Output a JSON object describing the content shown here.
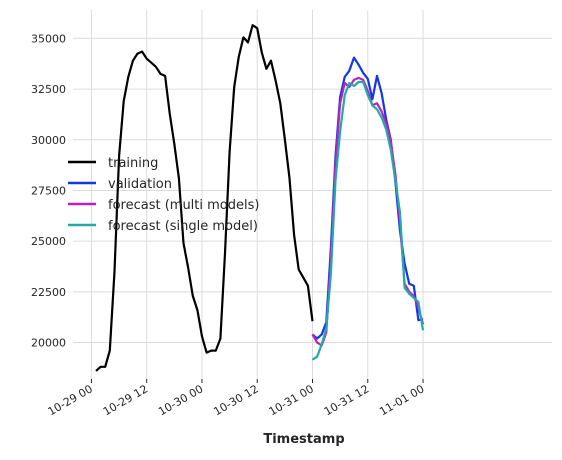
{
  "chart_data": {
    "type": "line",
    "title": "",
    "xlabel": "Timestamp",
    "ylabel": "",
    "grid": true,
    "legend_position": "center-left",
    "xlim": [
      -4,
      100
    ],
    "ylim": [
      18200,
      36400
    ],
    "x_ticks": [
      {
        "label": "10-29 00",
        "value": 0
      },
      {
        "label": "10-29 12",
        "value": 12
      },
      {
        "label": "10-30 00",
        "value": 24
      },
      {
        "label": "10-30 12",
        "value": 36
      },
      {
        "label": "10-31 00",
        "value": 48
      },
      {
        "label": "10-31 12",
        "value": 60
      },
      {
        "label": "11-01 00",
        "value": 72
      }
    ],
    "y_ticks": [
      {
        "label": "20000",
        "value": 20000
      },
      {
        "label": "22500",
        "value": 22500
      },
      {
        "label": "25000",
        "value": 25000
      },
      {
        "label": "27500",
        "value": 27500
      },
      {
        "label": "30000",
        "value": 30000
      },
      {
        "label": "32500",
        "value": 32500
      },
      {
        "label": "35000",
        "value": 35000
      }
    ],
    "series": [
      {
        "name": "training",
        "color": "#000000",
        "x": [
          1,
          2,
          3,
          4,
          5,
          6,
          7,
          8,
          9,
          10,
          11,
          12,
          13,
          14,
          15,
          16,
          17,
          18,
          19,
          20,
          21,
          22,
          23,
          24,
          25,
          26,
          27,
          28,
          29,
          30,
          31,
          32,
          33,
          34,
          35,
          36,
          37,
          38,
          39,
          40,
          41,
          42,
          43,
          44,
          45,
          46,
          47,
          48
        ],
        "y": [
          18600,
          18800,
          18800,
          19600,
          23500,
          29200,
          31900,
          33100,
          33900,
          34250,
          34350,
          34000,
          33800,
          33600,
          33250,
          33150,
          31300,
          29800,
          28100,
          24900,
          23700,
          22300,
          21600,
          20300,
          19500,
          19600,
          19600,
          20200,
          24400,
          29400,
          32600,
          34100,
          35050,
          34800,
          35650,
          35500,
          34300,
          33500,
          33900,
          32900,
          31800,
          30000,
          28100,
          25300,
          23600,
          23200,
          22800,
          21050
        ]
      },
      {
        "name": "validation",
        "color": "#1238e6",
        "x": [
          48,
          49,
          50,
          51,
          52,
          53,
          54,
          55,
          56,
          57,
          58,
          59,
          60,
          61,
          62,
          63,
          64,
          65,
          66,
          67,
          68,
          69,
          70,
          71,
          72
        ],
        "y": [
          20400,
          20200,
          20400,
          21000,
          24700,
          29200,
          32100,
          33100,
          33400,
          34050,
          33700,
          33300,
          33000,
          32000,
          33150,
          32300,
          31000,
          30000,
          27900,
          25500,
          23900,
          22900,
          22800,
          21100,
          21150
        ]
      },
      {
        "name": "forecast (multi models)",
        "color": "#bb22bb",
        "x": [
          48,
          49,
          50,
          51,
          52,
          53,
          54,
          55,
          56,
          57,
          58,
          59,
          60,
          61,
          62,
          63,
          64,
          65,
          66,
          67,
          68,
          69,
          70,
          71,
          72
        ],
        "y": [
          20400,
          20000,
          19850,
          20500,
          24200,
          28800,
          31800,
          32800,
          32600,
          32950,
          33050,
          32950,
          32400,
          31700,
          31800,
          31400,
          30800,
          29900,
          28300,
          25900,
          22900,
          22500,
          22300,
          21700,
          20900
        ]
      },
      {
        "name": "forecast (single model)",
        "color": "#22aaaa",
        "x": [
          48,
          49,
          50,
          51,
          52,
          53,
          54,
          55,
          56,
          57,
          58,
          59,
          60,
          61,
          62,
          63,
          64,
          65,
          66,
          67,
          68,
          69,
          70,
          71,
          72
        ],
        "y": [
          19150,
          19300,
          19900,
          20700,
          23400,
          28000,
          30400,
          32200,
          32800,
          32650,
          32850,
          32850,
          32200,
          31700,
          31500,
          31100,
          30500,
          29500,
          28000,
          26400,
          22700,
          22400,
          22200,
          22000,
          20600
        ]
      }
    ]
  }
}
